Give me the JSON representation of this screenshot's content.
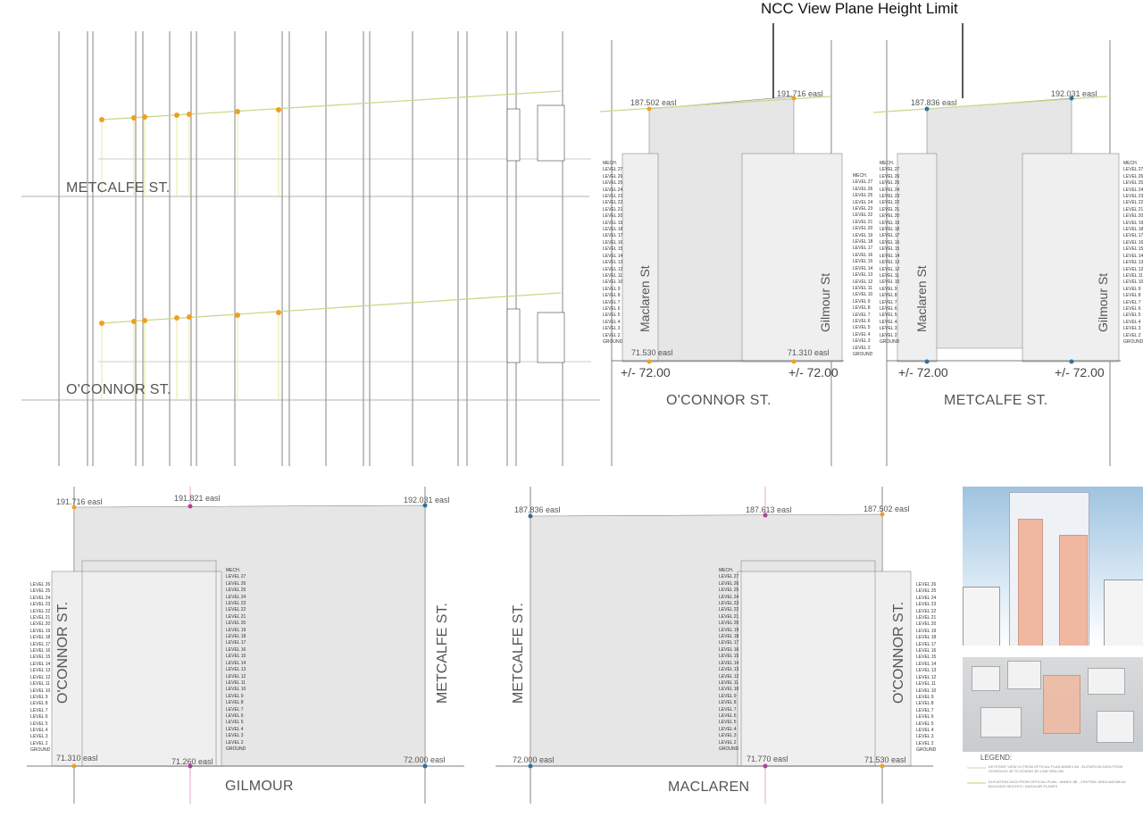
{
  "title": "NCC View Plane Height Limit",
  "top_left": {
    "street_upper": "METCALFE ST.",
    "street_lower": "O'CONNOR ST."
  },
  "elevation_oconnor": {
    "left_easl": "187.502 easl",
    "right_easl": "191.716 easl",
    "left_ground": "71.530 easl",
    "right_ground": "71.310 easl",
    "left_dim": "+/- 72.00",
    "right_dim": "+/- 72.00",
    "street": "O'CONNOR ST.",
    "left_side": "Maclaren St",
    "right_side": "Gilmour St"
  },
  "elevation_metcalfe": {
    "left_easl": "187.836 easl",
    "right_easl": "192.031 easl",
    "left_dim": "+/- 72.00",
    "right_dim": "+/- 72.00",
    "street": "METCALFE ST.",
    "left_side": "Maclaren St",
    "right_side": "Gilmour St"
  },
  "elevation_gilmour": {
    "left_easl": "191.716 easl",
    "mid_easl": "191.821 easl",
    "right_easl": "192.031 easl",
    "left_ground": "71.310 easl",
    "mid_ground": "71.260 easl",
    "right_ground": "72.000 easl",
    "street": "GILMOUR",
    "left_side": "O'CONNOR ST.",
    "right_side": "METCALFE ST."
  },
  "elevation_maclaren": {
    "left_easl": "187.836 easl",
    "mid_easl": "187.613 easl",
    "right_easl": "187.502 easl",
    "left_ground": "72.000 easl",
    "mid_ground": "71.770 easl",
    "right_ground": "71.530 easl",
    "street": "MACLAREN",
    "left_side": "METCALFE ST.",
    "right_side": "O'CONNOR ST."
  },
  "levels": [
    "MECH.",
    "LEVEL 27",
    "LEVEL 26",
    "LEVEL 25",
    "LEVEL 24",
    "LEVEL 23",
    "LEVEL 22",
    "LEVEL 21",
    "LEVEL 20",
    "LEVEL 19",
    "LEVEL 18",
    "LEVEL 17",
    "LEVEL 16",
    "LEVEL 15",
    "LEVEL 14",
    "LEVEL 13",
    "LEVEL 12",
    "LEVEL 11",
    "LEVEL 10",
    "LEVEL 9",
    "LEVEL 8",
    "LEVEL 7",
    "LEVEL 6",
    "LEVEL 5",
    "LEVEL 4",
    "LEVEL 3",
    "LEVEL 2",
    "GROUND"
  ],
  "legend": {
    "title": "LEGEND:",
    "item1": "KEYPOINT VIEW 21 FROM OFFICIAL PLAN ANNEX 8A - ELEVATION DATA FROM SCHEDULE 40 TO ZONING BY-LAW 2008-250",
    "item2": "ELEVATION DATA FROM OFFICIAL PLAN - ANNEX 8B - CENTRAL AREA MAXIMUM BUILDING HEIGHTS / ANGULAR PLANES"
  },
  "colors": {
    "view_plane": "#c9d98a",
    "orange_marker": "#f0a020",
    "blue_marker": "#3070a0",
    "magenta_marker": "#b0409a",
    "building_fill": "#e6e6e6",
    "tower_fill": "#f0b8a0"
  }
}
